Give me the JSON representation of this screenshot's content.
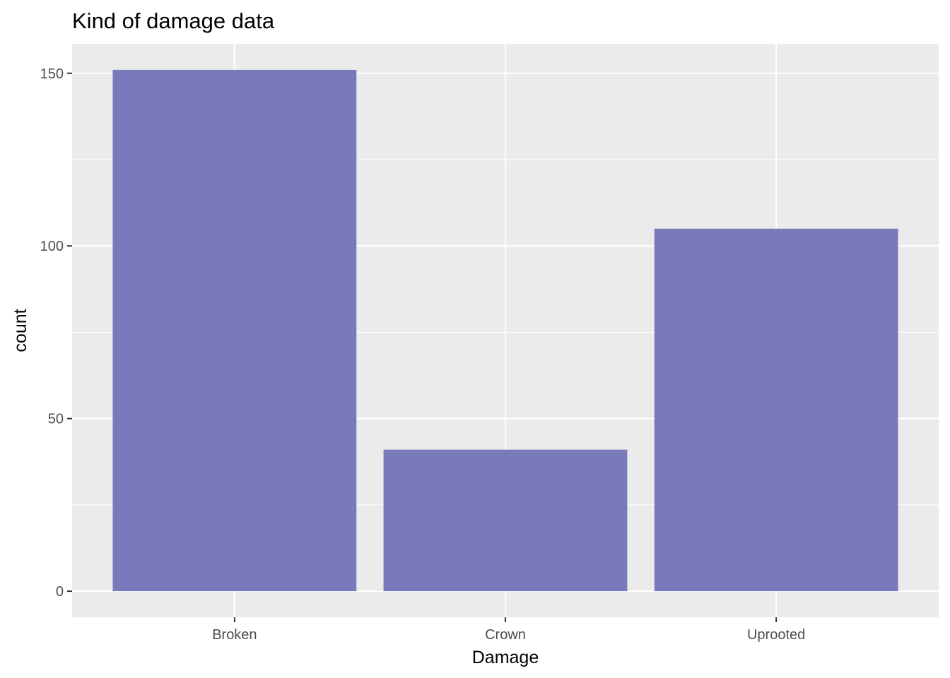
{
  "chart_data": {
    "type": "bar",
    "title": "Kind of damage data",
    "xlabel": "Damage",
    "ylabel": "count",
    "categories": [
      "Broken",
      "Crown",
      "Uprooted"
    ],
    "values": [
      151,
      41,
      105
    ],
    "ylim": [
      -7.55,
      158.55
    ],
    "yticks": [
      0,
      50,
      100,
      150
    ],
    "yticklabels": [
      "0",
      "50",
      "100",
      "150"
    ],
    "grid": true,
    "colors": {
      "bar": "#7475b9",
      "panel": "#ebebeb",
      "grid": "#ffffff",
      "ticks": "#333333"
    }
  }
}
